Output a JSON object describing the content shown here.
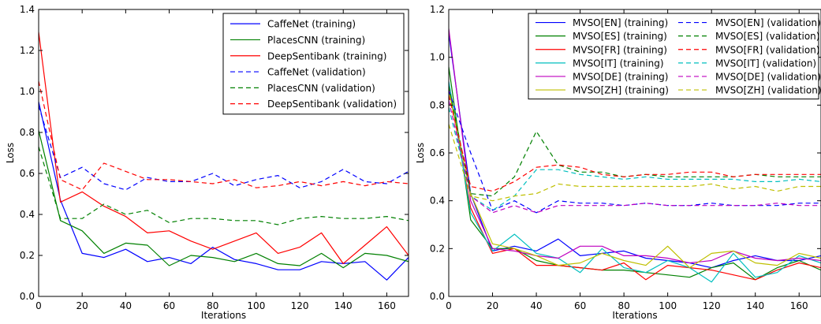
{
  "chart_data": [
    {
      "type": "line",
      "xlabel": "Iterations",
      "ylabel": "Loss",
      "xlim": [
        0,
        170
      ],
      "ylim": [
        0.0,
        1.4
      ],
      "xticks": [
        "0",
        "20",
        "40",
        "60",
        "80",
        "100",
        "120",
        "140",
        "160"
      ],
      "yticks": [
        "0.0",
        "0.2",
        "0.4",
        "0.6",
        "0.8",
        "1.0",
        "1.2",
        "1.4"
      ],
      "grid": false,
      "legend_position": "top-right",
      "legend_columns": 1,
      "x": [
        0,
        10,
        20,
        30,
        40,
        50,
        60,
        70,
        80,
        90,
        100,
        110,
        120,
        130,
        140,
        150,
        160,
        170
      ],
      "series": [
        {
          "name": "CaffeNet (training)",
          "color": "#0000ff",
          "dash": "solid",
          "values": [
            0.95,
            0.47,
            0.21,
            0.19,
            0.23,
            0.17,
            0.19,
            0.16,
            0.24,
            0.18,
            0.16,
            0.13,
            0.13,
            0.17,
            0.16,
            0.17,
            0.08,
            0.19
          ]
        },
        {
          "name": "PlacesCNN (training)",
          "color": "#008000",
          "dash": "solid",
          "values": [
            0.81,
            0.37,
            0.32,
            0.21,
            0.26,
            0.25,
            0.15,
            0.2,
            0.19,
            0.17,
            0.21,
            0.16,
            0.15,
            0.21,
            0.14,
            0.21,
            0.2,
            0.17
          ]
        },
        {
          "name": "DeepSentibank (training)",
          "color": "#ff0000",
          "dash": "solid",
          "values": [
            1.29,
            0.46,
            0.51,
            0.44,
            0.39,
            0.31,
            0.32,
            0.27,
            0.23,
            0.27,
            0.31,
            0.21,
            0.24,
            0.31,
            0.16,
            0.25,
            0.34,
            0.2
          ]
        },
        {
          "name": "CaffeNet (validation)",
          "color": "#0000ff",
          "dash": "dashed",
          "values": [
            0.93,
            0.58,
            0.63,
            0.55,
            0.52,
            0.58,
            0.56,
            0.56,
            0.6,
            0.54,
            0.57,
            0.59,
            0.53,
            0.56,
            0.62,
            0.56,
            0.55,
            0.61
          ]
        },
        {
          "name": "PlacesCNN (validation)",
          "color": "#008000",
          "dash": "dashed",
          "values": [
            0.73,
            0.38,
            0.38,
            0.45,
            0.4,
            0.42,
            0.36,
            0.38,
            0.38,
            0.37,
            0.37,
            0.35,
            0.38,
            0.39,
            0.38,
            0.38,
            0.39,
            0.37
          ]
        },
        {
          "name": "DeepSentibank (validation)",
          "color": "#ff0000",
          "dash": "dashed",
          "values": [
            1.05,
            0.57,
            0.52,
            0.65,
            0.61,
            0.57,
            0.57,
            0.56,
            0.55,
            0.57,
            0.53,
            0.54,
            0.56,
            0.54,
            0.56,
            0.54,
            0.56,
            0.55
          ]
        }
      ]
    },
    {
      "type": "line",
      "xlabel": "Iterations",
      "ylabel": "Loss",
      "xlim": [
        0,
        170
      ],
      "ylim": [
        0.0,
        1.2
      ],
      "xticks": [
        "0",
        "20",
        "40",
        "60",
        "80",
        "100",
        "120",
        "140",
        "160"
      ],
      "yticks": [
        "0.0",
        "0.2",
        "0.4",
        "0.6",
        "0.8",
        "1.0",
        "1.2"
      ],
      "grid": false,
      "legend_position": "top-right",
      "legend_columns": 2,
      "x": [
        0,
        10,
        20,
        30,
        40,
        50,
        60,
        70,
        80,
        90,
        100,
        110,
        120,
        130,
        140,
        150,
        160,
        170
      ],
      "series": [
        {
          "name": "MVSO[EN] (training)",
          "color": "#0000ff",
          "dash": "solid",
          "values": [
            1.1,
            0.43,
            0.19,
            0.21,
            0.19,
            0.24,
            0.17,
            0.18,
            0.19,
            0.16,
            0.15,
            0.14,
            0.12,
            0.15,
            0.17,
            0.15,
            0.15,
            0.17
          ]
        },
        {
          "name": "MVSO[ES] (training)",
          "color": "#008000",
          "dash": "solid",
          "values": [
            0.96,
            0.32,
            0.2,
            0.2,
            0.15,
            0.13,
            0.12,
            0.11,
            0.11,
            0.1,
            0.09,
            0.08,
            0.12,
            0.14,
            0.07,
            0.12,
            0.15,
            0.11
          ]
        },
        {
          "name": "MVSO[FR] (training)",
          "color": "#ff0000",
          "dash": "solid",
          "values": [
            0.88,
            0.37,
            0.18,
            0.2,
            0.13,
            0.13,
            0.12,
            0.11,
            0.14,
            0.07,
            0.13,
            0.12,
            0.11,
            0.09,
            0.07,
            0.11,
            0.14,
            0.12
          ]
        },
        {
          "name": "MVSO[IT] (training)",
          "color": "#00bfbf",
          "dash": "solid",
          "values": [
            0.9,
            0.35,
            0.19,
            0.26,
            0.18,
            0.16,
            0.1,
            0.2,
            0.12,
            0.1,
            0.15,
            0.12,
            0.06,
            0.18,
            0.08,
            0.1,
            0.17,
            0.14
          ]
        },
        {
          "name": "MVSO[DE] (training)",
          "color": "#bf00bf",
          "dash": "solid",
          "values": [
            1.12,
            0.4,
            0.2,
            0.19,
            0.17,
            0.16,
            0.21,
            0.21,
            0.17,
            0.17,
            0.16,
            0.14,
            0.15,
            0.19,
            0.16,
            0.15,
            0.16,
            0.15
          ]
        },
        {
          "name": "MVSO[ZH] (training)",
          "color": "#bfbf00",
          "dash": "solid",
          "values": [
            0.86,
            0.43,
            0.22,
            0.2,
            0.17,
            0.13,
            0.14,
            0.18,
            0.15,
            0.13,
            0.21,
            0.12,
            0.18,
            0.19,
            0.14,
            0.13,
            0.18,
            0.16
          ]
        },
        {
          "name": "MVSO[EN] (validation)",
          "color": "#0000ff",
          "dash": "dashed",
          "values": [
            0.86,
            0.6,
            0.36,
            0.4,
            0.35,
            0.4,
            0.39,
            0.39,
            0.38,
            0.39,
            0.38,
            0.38,
            0.39,
            0.38,
            0.38,
            0.38,
            0.39,
            0.39
          ]
        },
        {
          "name": "MVSO[ES] (validation)",
          "color": "#008000",
          "dash": "dashed",
          "values": [
            0.88,
            0.43,
            0.42,
            0.5,
            0.69,
            0.55,
            0.52,
            0.52,
            0.5,
            0.51,
            0.5,
            0.5,
            0.5,
            0.5,
            0.51,
            0.5,
            0.5,
            0.5
          ]
        },
        {
          "name": "MVSO[FR] (validation)",
          "color": "#ff0000",
          "dash": "dashed",
          "values": [
            0.84,
            0.46,
            0.44,
            0.48,
            0.54,
            0.55,
            0.54,
            0.51,
            0.5,
            0.51,
            0.51,
            0.52,
            0.52,
            0.5,
            0.51,
            0.51,
            0.51,
            0.51
          ]
        },
        {
          "name": "MVSO[IT] (validation)",
          "color": "#00bfbf",
          "dash": "dashed",
          "values": [
            0.79,
            0.42,
            0.36,
            0.42,
            0.53,
            0.53,
            0.51,
            0.5,
            0.49,
            0.5,
            0.49,
            0.49,
            0.49,
            0.49,
            0.48,
            0.48,
            0.49,
            0.48
          ]
        },
        {
          "name": "MVSO[DE] (validation)",
          "color": "#bf00bf",
          "dash": "dashed",
          "values": [
            0.82,
            0.42,
            0.35,
            0.38,
            0.35,
            0.38,
            0.38,
            0.38,
            0.38,
            0.39,
            0.38,
            0.38,
            0.38,
            0.38,
            0.38,
            0.39,
            0.38,
            0.38
          ]
        },
        {
          "name": "MVSO[ZH] (validation)",
          "color": "#bfbf00",
          "dash": "dashed",
          "values": [
            0.72,
            0.42,
            0.4,
            0.42,
            0.43,
            0.47,
            0.46,
            0.46,
            0.46,
            0.46,
            0.46,
            0.46,
            0.47,
            0.45,
            0.46,
            0.44,
            0.46,
            0.46
          ]
        }
      ]
    }
  ]
}
